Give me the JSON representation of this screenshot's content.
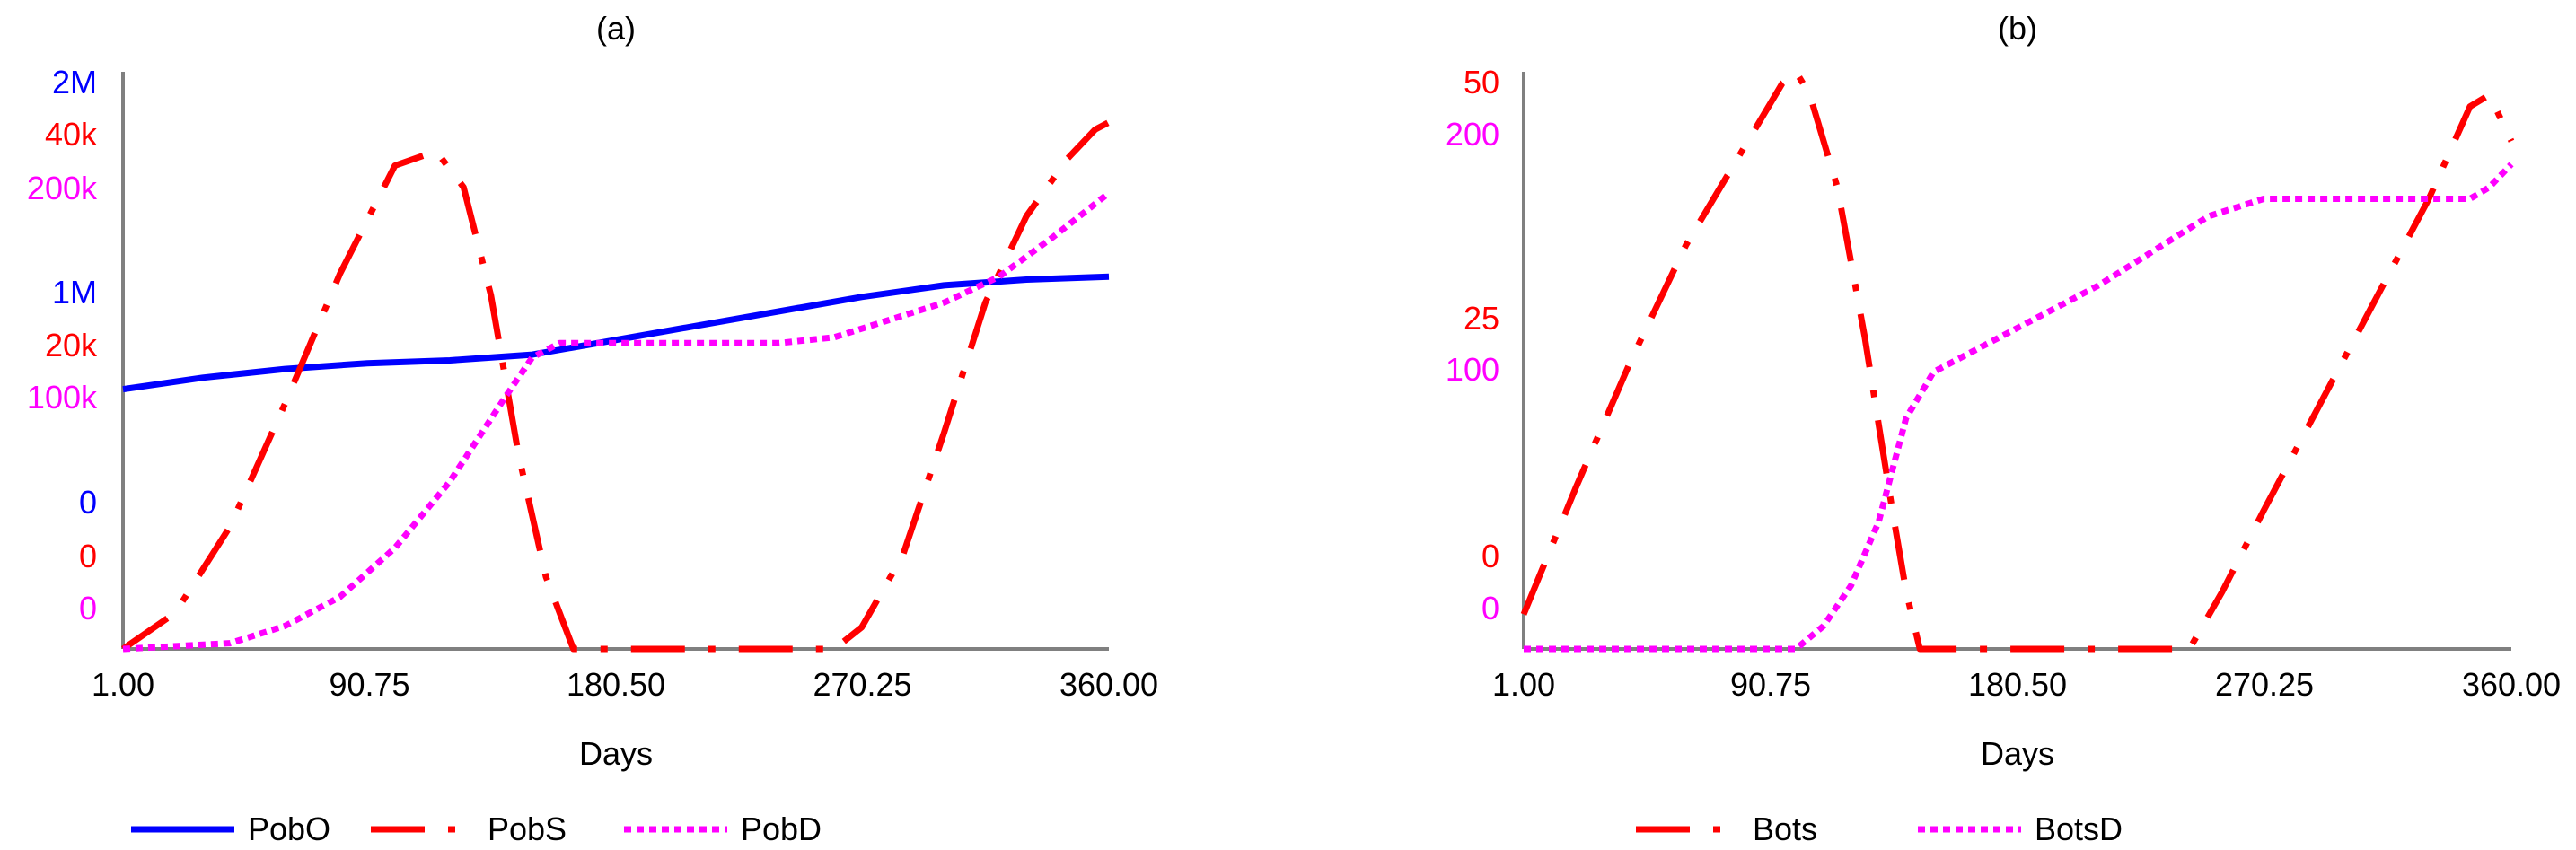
{
  "chart_data": [
    {
      "type": "line",
      "title": "(a)",
      "xlabel": "Days",
      "x_ticks": [
        "1.00",
        "90.75",
        "180.50",
        "270.25",
        "360.00"
      ],
      "xlim": [
        1,
        360
      ],
      "axes": [
        {
          "color": "#0000ff",
          "ylim": [
            0,
            2000000
          ],
          "ticks": [
            {
              "label": "0",
              "value": 0
            },
            {
              "label": "1M",
              "value": 1000000
            },
            {
              "label": "2M",
              "value": 2000000
            }
          ]
        },
        {
          "color": "#ff0000",
          "ylim": [
            0,
            40000
          ],
          "ticks": [
            {
              "label": "0",
              "value": 0
            },
            {
              "label": "20k",
              "value": 20000
            },
            {
              "label": "40k",
              "value": 40000
            }
          ]
        },
        {
          "color": "#ff00ff",
          "ylim": [
            0,
            200000
          ],
          "ticks": [
            {
              "label": "0",
              "value": 0
            },
            {
              "label": "100k",
              "value": 100000
            },
            {
              "label": "200k",
              "value": 200000
            }
          ]
        }
      ],
      "series": [
        {
          "name": "PobO",
          "color": "#0000ff",
          "style": "solid",
          "axis": 0,
          "x": [
            1,
            30,
            60,
            90,
            120,
            150,
            180,
            210,
            240,
            270,
            300,
            330,
            360
          ],
          "y": [
            900000,
            940000,
            970000,
            990000,
            1000000,
            1020000,
            1070000,
            1120000,
            1170000,
            1220000,
            1260000,
            1280000,
            1290000
          ]
        },
        {
          "name": "PobS",
          "color": "#ff0000",
          "style": "dashdot",
          "axis": 1,
          "x": [
            1,
            20,
            40,
            60,
            80,
            100,
            115,
            125,
            135,
            145,
            155,
            165,
            180,
            210,
            240,
            260,
            270,
            285,
            300,
            315,
            330,
            345,
            355,
            360
          ],
          "y": [
            0,
            2500,
            8500,
            17000,
            26000,
            33500,
            34500,
            32000,
            24500,
            13500,
            5000,
            0,
            0,
            0,
            0,
            0,
            1500,
            6500,
            15000,
            24000,
            30000,
            34000,
            36000,
            36500
          ]
        },
        {
          "name": "PobD",
          "color": "#ff00ff",
          "style": "dotted",
          "axis": 2,
          "x": [
            1,
            40,
            60,
            80,
            100,
            120,
            140,
            150,
            160,
            170,
            180,
            200,
            220,
            240,
            260,
            280,
            300,
            320,
            340,
            360
          ],
          "y": [
            0,
            2000,
            8000,
            18000,
            35000,
            58000,
            87000,
            101000,
            106000,
            106000,
            106000,
            106000,
            106000,
            106000,
            108000,
            114000,
            120000,
            129000,
            143000,
            158000
          ]
        }
      ],
      "legend": [
        "PobO",
        "PobS",
        "PobD"
      ],
      "legend_position": "bottom",
      "grid": false
    },
    {
      "type": "line",
      "title": "(b)",
      "xlabel": "Days",
      "x_ticks": [
        "1.00",
        "90.75",
        "180.50",
        "270.25",
        "360.00"
      ],
      "xlim": [
        1,
        360
      ],
      "axes": [
        {
          "color": "#ff0000",
          "ylim": [
            0,
            50
          ],
          "ticks": [
            {
              "label": "0",
              "value": 0
            },
            {
              "label": "25",
              "value": 25
            },
            {
              "label": "50",
              "value": 50
            }
          ]
        },
        {
          "color": "#ff00ff",
          "ylim": [
            0,
            200
          ],
          "ticks": [
            {
              "label": "0",
              "value": 0
            },
            {
              "label": "100",
              "value": 100
            },
            {
              "label": "200",
              "value": 200
            }
          ]
        }
      ],
      "series": [
        {
          "name": "Bots",
          "color": "#ff0000",
          "style": "dashdot",
          "axis": 0,
          "x": [
            1,
            20,
            40,
            60,
            80,
            95,
            100,
            105,
            115,
            125,
            135,
            140,
            145,
            150,
            175,
            200,
            225,
            243,
            255,
            270,
            290,
            310,
            330,
            345,
            352,
            360
          ],
          "y": [
            3,
            14,
            25,
            35,
            43,
            49,
            50,
            48,
            40,
            27,
            12,
            5,
            0,
            0,
            0,
            0,
            0,
            0,
            5,
            12,
            21,
            30,
            39,
            47,
            48,
            44
          ]
        },
        {
          "name": "BotsD",
          "color": "#ff00ff",
          "style": "dotted",
          "axis": 1,
          "x": [
            1,
            50,
            90,
            100,
            110,
            120,
            130,
            140,
            150,
            160,
            170,
            190,
            210,
            230,
            250,
            270,
            290,
            310,
            330,
            345,
            352,
            360
          ],
          "y": [
            0,
            0,
            0,
            0,
            8,
            22,
            44,
            80,
            96,
            101,
            106,
            116,
            126,
            138,
            150,
            156,
            156,
            156,
            156,
            156,
            160,
            168
          ]
        }
      ],
      "legend": [
        "Bots",
        "BotsD"
      ],
      "legend_position": "bottom",
      "grid": false
    }
  ]
}
